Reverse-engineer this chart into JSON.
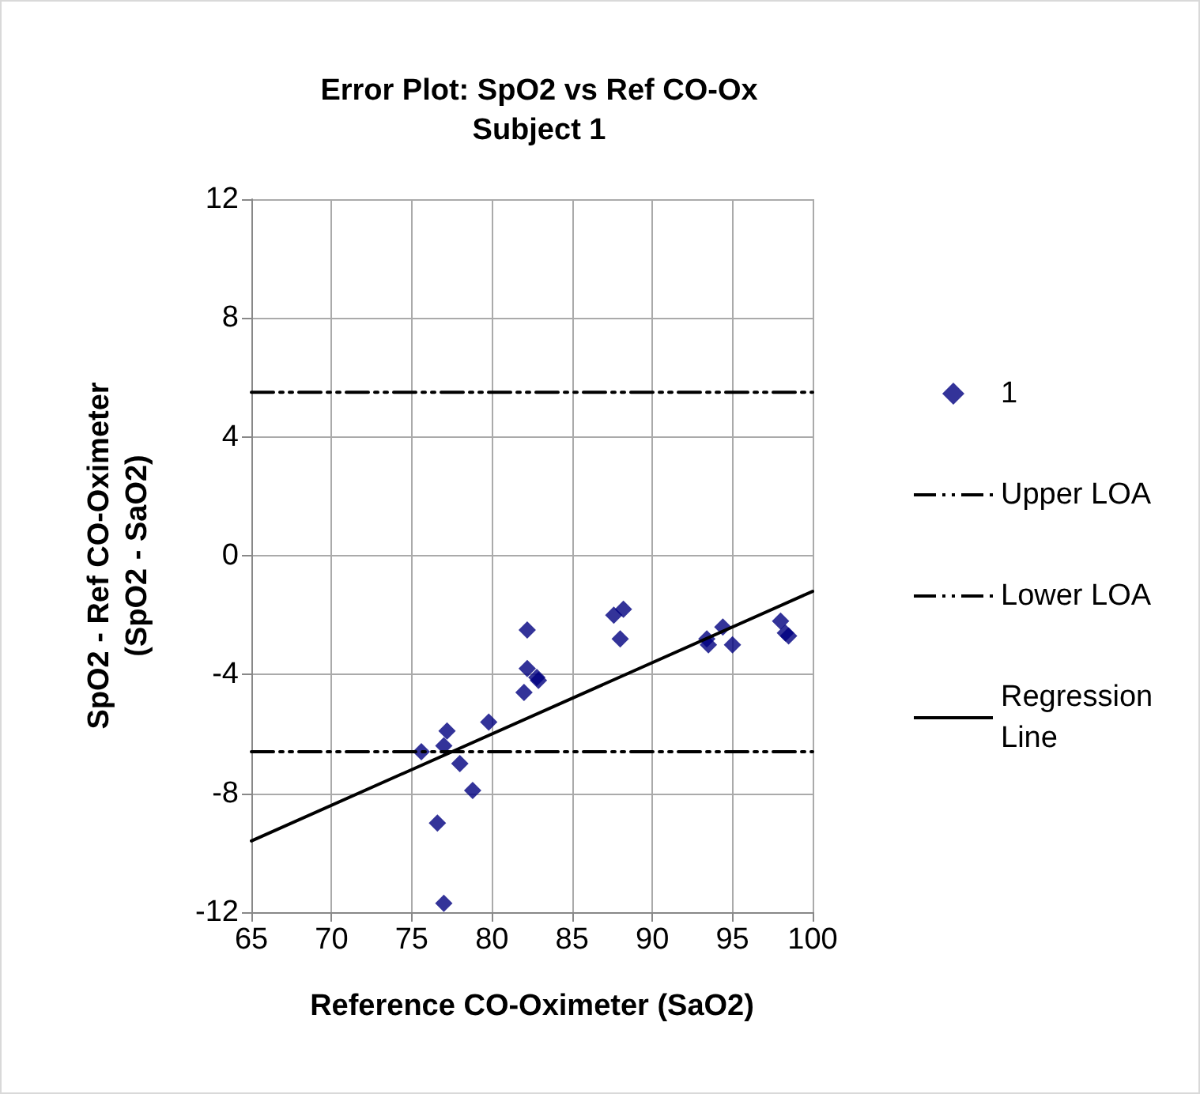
{
  "chart_data": {
    "type": "scatter",
    "title": "Error Plot: SpO2 vs Ref CO-Ox",
    "subtitle": "Subject 1",
    "xlabel": "Reference CO-Oximeter (SaO2)",
    "ylabel": "SpO2 - Ref CO-Oximeter\n(SpO2 - SaO2)",
    "xlim": [
      65,
      100
    ],
    "xticks": [
      65,
      70,
      75,
      80,
      85,
      90,
      95,
      100
    ],
    "ylim": [
      -12,
      12
    ],
    "yticks": [
      -12,
      -8,
      -4,
      0,
      4,
      8,
      12
    ],
    "grid": true,
    "legend": "right",
    "series": [
      {
        "name": "1",
        "marker": "diamond",
        "color": "#000080",
        "x": [
          75.6,
          76.6,
          77.0,
          77.2,
          77.0,
          78.0,
          78.8,
          79.8,
          82.0,
          82.2,
          82.2,
          82.8,
          82.9,
          87.6,
          88.2,
          88.0,
          93.4,
          93.5,
          94.4,
          95.0,
          98.0,
          98.3,
          98.5
        ],
        "values": [
          -6.6,
          -9.0,
          -6.4,
          -5.9,
          -11.7,
          -7.0,
          -7.9,
          -5.6,
          -4.6,
          -2.5,
          -3.8,
          -4.1,
          -4.2,
          -2.0,
          -1.8,
          -2.8,
          -2.8,
          -3.0,
          -2.4,
          -3.0,
          -2.2,
          -2.6,
          -2.7
        ]
      },
      {
        "name": "Upper LOA",
        "type": "line",
        "marker": "none",
        "line_style": "dashed",
        "color": "#000000",
        "x": [
          65,
          100
        ],
        "values": [
          5.5,
          5.5
        ]
      },
      {
        "name": "Lower LOA",
        "type": "line",
        "marker": "none",
        "line_style": "dashed",
        "color": "#000000",
        "x": [
          65,
          100
        ],
        "values": [
          -6.6,
          -6.6
        ]
      },
      {
        "name": "Regression Line",
        "type": "line",
        "marker": "none",
        "line_style": "solid",
        "color": "#000000",
        "x": [
          65,
          100
        ],
        "values": [
          -9.6,
          -1.2
        ]
      }
    ]
  }
}
